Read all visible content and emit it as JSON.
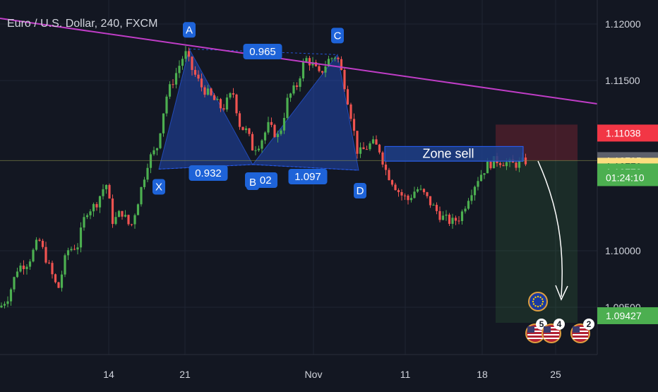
{
  "title": "Euro / U.S. Dollar, 240, FXCM",
  "colors": {
    "background": "#131722",
    "bull": "#4caf50",
    "bear": "#ef5350",
    "pattern_fill": "#2962ff",
    "point_label": "#1e63d8",
    "trendline": "#c03dc7",
    "grid": "#1f2433"
  },
  "chart_data": {
    "type": "candlestick",
    "symbol": "Euro / U.S. Dollar",
    "interval": "240",
    "source": "FXCM",
    "x_ticks": [
      "14",
      "21",
      "Nov",
      "11",
      "18",
      "25"
    ],
    "y_ticks": [
      "1.12000",
      "1.11500",
      "1.10000",
      "1.09500"
    ],
    "ylim": [
      1.0915,
      1.1215
    ],
    "grid": true,
    "close_path": [
      [
        0,
        1.095
      ],
      [
        12,
        1.096
      ],
      [
        25,
        1.0985
      ],
      [
        40,
        1.099
      ],
      [
        55,
        1.101
      ],
      [
        70,
        1.0985
      ],
      [
        82,
        1.0965
      ],
      [
        95,
        1.1
      ],
      [
        110,
        1.1005
      ],
      [
        122,
        1.1035
      ],
      [
        135,
        1.104
      ],
      [
        150,
        1.106
      ],
      [
        160,
        1.1025
      ],
      [
        172,
        1.1035
      ],
      [
        185,
        1.102
      ],
      [
        198,
        1.105
      ],
      [
        210,
        1.108
      ],
      [
        222,
        1.109
      ],
      [
        235,
        1.1135
      ],
      [
        245,
        1.115
      ],
      [
        255,
        1.1165
      ],
      [
        262,
        1.1175
      ],
      [
        272,
        1.116
      ],
      [
        285,
        1.1145
      ],
      [
        300,
        1.1135
      ],
      [
        315,
        1.1125
      ],
      [
        330,
        1.114
      ],
      [
        340,
        1.111
      ],
      [
        350,
        1.1105
      ],
      [
        358,
        1.109
      ],
      [
        368,
        1.1095
      ],
      [
        380,
        1.111
      ],
      [
        395,
        1.11
      ],
      [
        408,
        1.1135
      ],
      [
        420,
        1.1145
      ],
      [
        432,
        1.117
      ],
      [
        442,
        1.1165
      ],
      [
        452,
        1.1155
      ],
      [
        465,
        1.1168
      ],
      [
        477,
        1.1173
      ],
      [
        487,
        1.115
      ],
      [
        497,
        1.112
      ],
      [
        507,
        1.1085
      ],
      [
        517,
        1.109
      ],
      [
        527,
        1.1095
      ],
      [
        537,
        1.109
      ],
      [
        547,
        1.107
      ],
      [
        557,
        1.106
      ],
      [
        567,
        1.105
      ],
      [
        578,
        1.1045
      ],
      [
        590,
        1.1055
      ],
      [
        600,
        1.105
      ],
      [
        612,
        1.104
      ],
      [
        625,
        1.103
      ],
      [
        640,
        1.1025
      ],
      [
        652,
        1.103
      ],
      [
        665,
        1.105
      ],
      [
        678,
        1.1065
      ],
      [
        690,
        1.1075
      ],
      [
        702,
        1.108
      ],
      [
        715,
        1.1078
      ],
      [
        728,
        1.1076
      ],
      [
        740,
        1.1078
      ],
      [
        748,
        1.108
      ]
    ],
    "pattern": {
      "name": "harmonic",
      "points": {
        "X": {
          "label": "X",
          "x": 225,
          "price": 1.1072
        },
        "A": {
          "label": "A",
          "x": 268,
          "price": 1.1178
        },
        "B": {
          "label": "B",
          "x": 358,
          "price": 1.1076
        },
        "C": {
          "label": "C",
          "x": 478,
          "price": 1.1173
        },
        "D": {
          "label": "D",
          "x": 508,
          "price": 1.1071
        }
      },
      "ratios": [
        {
          "id": "xb",
          "text": "0.932"
        },
        {
          "id": "ac",
          "text": "0.965"
        },
        {
          "id": "bc",
          "text": "1.02"
        },
        {
          "id": "bd",
          "text": "1.097"
        }
      ]
    },
    "trendline_label": "",
    "zone": {
      "label": "Zone sell",
      "top": 1.1092,
      "bottom": 1.1079
    },
    "position": {
      "type": "short",
      "entry": 1.10795,
      "stop": 1.11038,
      "target": 1.09427
    },
    "price_tags": [
      {
        "id": "stop",
        "text": "1.11038",
        "bg": "#f23645",
        "fg": "#ffffff",
        "price": 1.11038
      },
      {
        "id": "last",
        "text": "1.10795",
        "bg": "#5d606b",
        "fg": "#ffffff",
        "price": 1.10795
      },
      {
        "id": "yellow",
        "text": "1.10779",
        "bg": "#fbdd7e",
        "fg": "#131722",
        "price": 1.10745
      },
      {
        "id": "bid",
        "text": "1.10778",
        "bg": "#4caf50",
        "fg": "#ffffff",
        "price": 1.10695
      },
      {
        "id": "countdown",
        "text": "01:24:10",
        "bg": "#4caf50",
        "fg": "#ffffff",
        "price": 1.10645
      },
      {
        "id": "target",
        "text": "1.09427",
        "bg": "#4caf50",
        "fg": "#ffffff",
        "price": 1.09427
      }
    ],
    "events": [
      {
        "id": "eu",
        "type": "EU flag",
        "count": ""
      },
      {
        "id": "us1",
        "type": "US flag",
        "count": "5"
      },
      {
        "id": "us2",
        "type": "US flag",
        "count": "4"
      },
      {
        "id": "us3",
        "type": "US flag",
        "count": "2"
      }
    ]
  }
}
